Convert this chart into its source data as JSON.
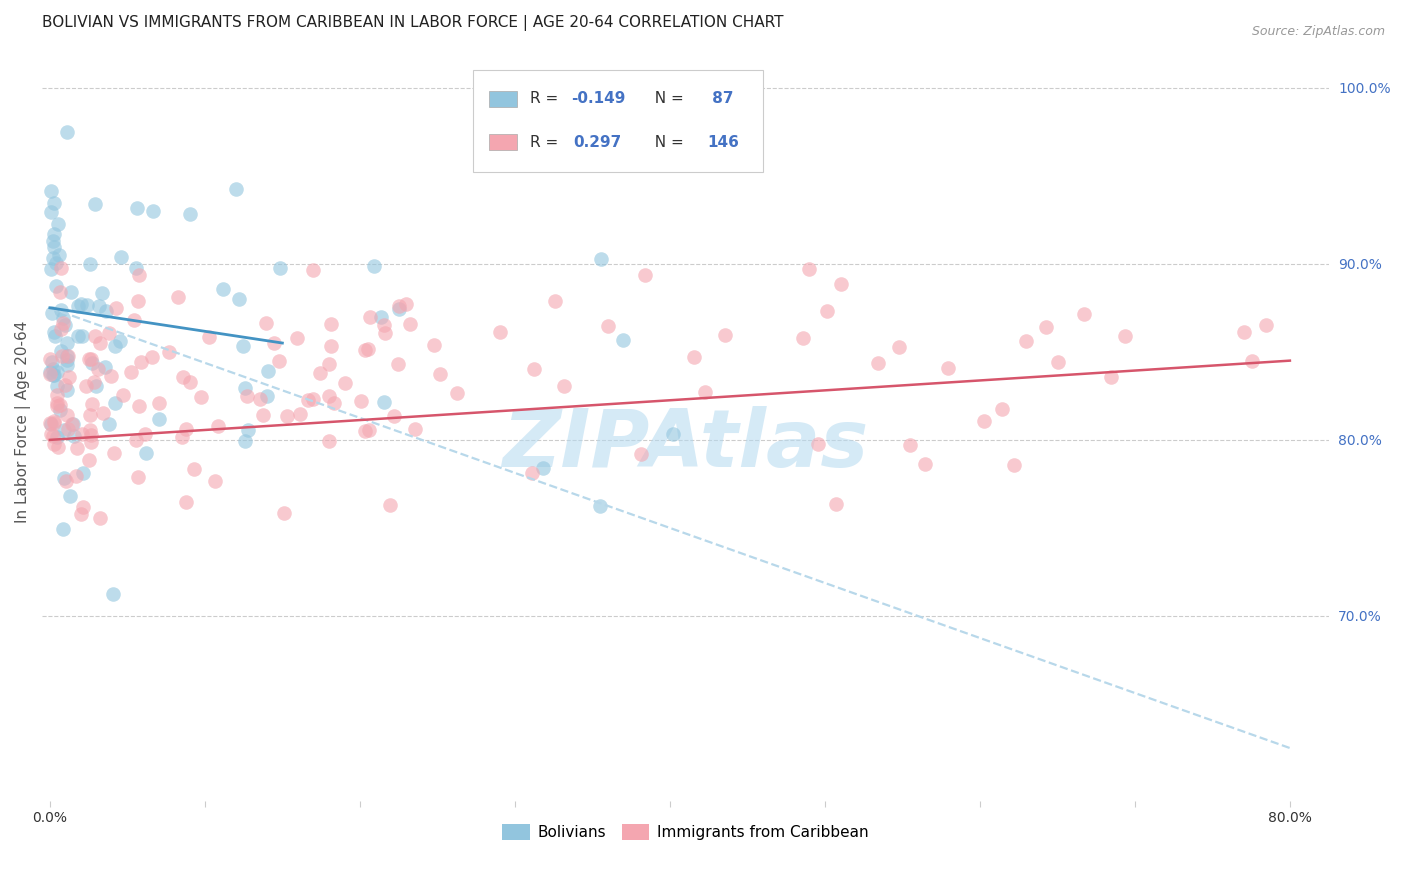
{
  "title": "BOLIVIAN VS IMMIGRANTS FROM CARIBBEAN IN LABOR FORCE | AGE 20-64 CORRELATION CHART",
  "source": "Source: ZipAtlas.com",
  "ylabel": "In Labor Force | Age 20-64",
  "ylim": [
    0.595,
    1.025
  ],
  "xlim": [
    -0.005,
    0.825
  ],
  "blue_R": -0.149,
  "blue_N": 87,
  "pink_R": 0.297,
  "pink_N": 146,
  "blue_color": "#92c5de",
  "pink_color": "#f4a6b0",
  "blue_line_color": "#4393c3",
  "pink_line_color": "#d6556b",
  "blue_dash_color": "#b8d8ea",
  "watermark": "ZIPAtlas",
  "watermark_color": "#b3d9f0",
  "grid_color": "#cccccc",
  "title_fontsize": 11,
  "axis_label_fontsize": 11,
  "tick_fontsize": 10,
  "right_tick_color": "#4472c4",
  "legend_text_color": "#4472c4",
  "legend_r_label_color": "#333333"
}
